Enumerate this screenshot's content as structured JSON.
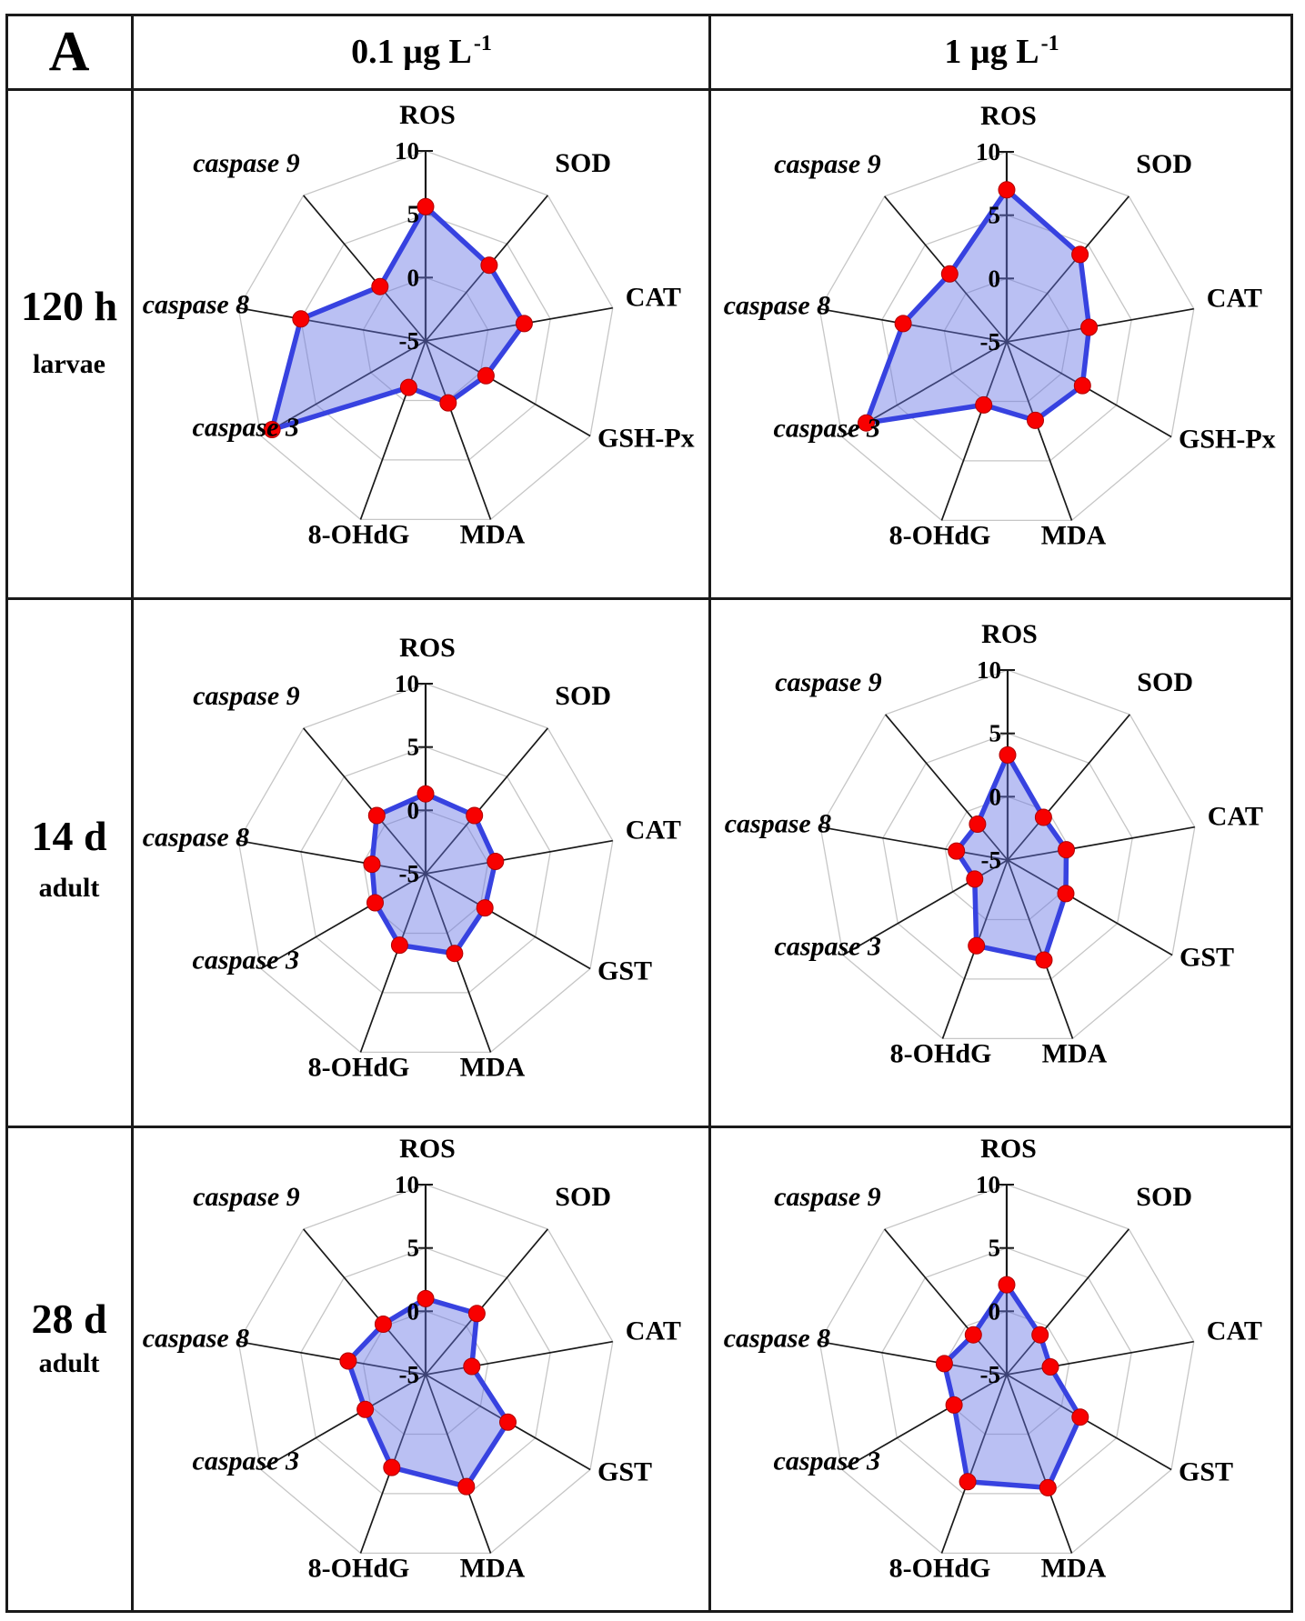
{
  "panel": {
    "label": "A"
  },
  "header": {
    "columns": [
      {
        "prefix": "0.1 µg L",
        "sup": "-1"
      },
      {
        "prefix": "1 µg L",
        "sup": "-1"
      }
    ]
  },
  "row_labels": [
    {
      "title": "120 h",
      "subtitle": "larvae"
    },
    {
      "title": "14 d",
      "subtitle": "adult"
    },
    {
      "title": "28 d",
      "subtitle": "adult"
    }
  ],
  "radar_style": {
    "polygon_stroke": "#3742e0",
    "polygon_fill": "#6574e4",
    "fill_opacity": 0.45,
    "dot_color": "#f80000",
    "dot_edge": "#b00000",
    "ring_color": "#c6c6c6",
    "spoke_color": "#1a1a1a",
    "text_color": "#000000"
  },
  "radar_config": {
    "r_min": -5,
    "r_max": 10,
    "tick_values": [
      10,
      5,
      0,
      -5
    ],
    "tick_labels": [
      "10",
      "5",
      "0",
      "-5"
    ],
    "italic_axes": [
      "caspase 3",
      "caspase 8",
      "caspase 9"
    ],
    "grid_rings_at": [
      0,
      5,
      10
    ]
  },
  "chart_data": [
    {
      "type": "radar",
      "row": "120 h larvae",
      "column": "0.1 µg L-1",
      "axes": [
        "ROS",
        "SOD",
        "CAT",
        "GSH-Px",
        "MDA",
        "8-OHdG",
        "caspase 3",
        "caspase 8",
        "caspase 9"
      ],
      "values": [
        5.6,
        2.8,
        2.9,
        0.5,
        0.2,
        -1.1,
        9.0,
        5.0,
        0.6
      ]
    },
    {
      "type": "radar",
      "row": "120 h larvae",
      "column": "1 µg L-1",
      "axes": [
        "ROS",
        "SOD",
        "CAT",
        "GSH-Px",
        "MDA",
        "8-OHdG",
        "caspase 3",
        "caspase 8",
        "caspase 9"
      ],
      "values": [
        7.0,
        4.0,
        1.6,
        1.9,
        1.6,
        0.3,
        7.8,
        3.3,
        2.0
      ]
    },
    {
      "type": "radar",
      "row": "14 d adult",
      "column": "0.1 µg L-1",
      "axes": [
        "ROS",
        "SOD",
        "CAT",
        "GST",
        "MDA",
        "8-OHdG",
        "caspase 3",
        "caspase 8",
        "caspase 9"
      ],
      "values": [
        1.3,
        1.0,
        0.6,
        0.4,
        1.7,
        1.0,
        -0.4,
        -0.7,
        1.0
      ]
    },
    {
      "type": "radar",
      "row": "14 d adult",
      "column": "1 µg L-1",
      "axes": [
        "ROS",
        "SOD",
        "CAT",
        "GST",
        "MDA",
        "8-OHdG",
        "caspase 3",
        "caspase 8",
        "caspase 9"
      ],
      "values": [
        3.3,
        -0.6,
        -0.3,
        0.3,
        3.4,
        2.2,
        -2.0,
        -0.9,
        -1.3
      ]
    },
    {
      "type": "radar",
      "row": "28 d adult",
      "column": "0.1 µg L-1",
      "axes": [
        "ROS",
        "SOD",
        "CAT",
        "GST",
        "MDA",
        "8-OHdG",
        "caspase 3",
        "caspase 8",
        "caspase 9"
      ],
      "values": [
        1.0,
        1.3,
        -1.3,
        2.5,
        4.4,
        2.8,
        0.5,
        1.2,
        0.2
      ]
    },
    {
      "type": "radar",
      "row": "28 d adult",
      "column": "1 µg L-1",
      "axes": [
        "ROS",
        "SOD",
        "CAT",
        "GST",
        "MDA",
        "8-OHdG",
        "caspase 3",
        "caspase 8",
        "caspase 9"
      ],
      "values": [
        2.1,
        -0.9,
        -1.5,
        1.7,
        4.5,
        4.0,
        -0.2,
        0.0,
        -0.9
      ]
    }
  ]
}
